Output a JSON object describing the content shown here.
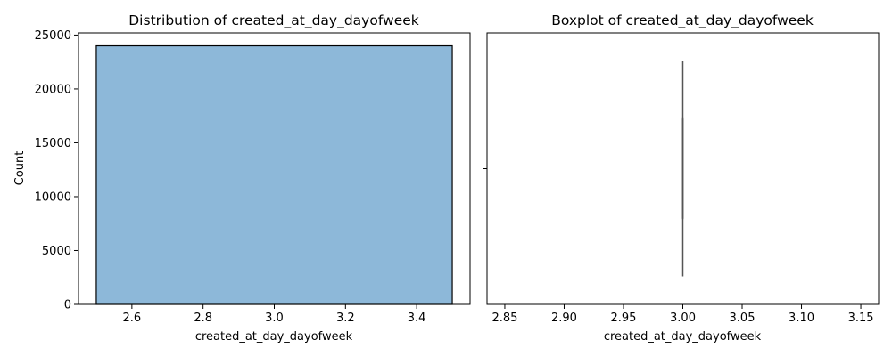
{
  "chart_data": [
    {
      "type": "bar",
      "title": "Distribution of created_at_day_dayofweek",
      "xlabel": "created_at_day_dayofweek",
      "ylabel": "Count",
      "bins": [
        {
          "x0": 2.5,
          "x1": 3.5,
          "count": 24000
        }
      ],
      "xlim": [
        2.45,
        3.55
      ],
      "ylim": [
        0,
        25200
      ],
      "xticks": [
        2.6,
        2.8,
        3.0,
        3.2,
        3.4
      ],
      "xtick_labels": [
        "2.6",
        "2.8",
        "3.0",
        "3.2",
        "3.4"
      ],
      "yticks": [
        0,
        5000,
        10000,
        15000,
        20000,
        25000
      ],
      "ytick_labels": [
        "0",
        "5000",
        "10000",
        "15000",
        "20000",
        "25000"
      ],
      "bar_color": "#8db8d9",
      "grid": false
    },
    {
      "type": "boxplot",
      "title": "Boxplot of created_at_day_dayofweek",
      "xlabel": "created_at_day_dayofweek",
      "ylabel": "",
      "box": {
        "min": 3.0,
        "q1": 3.0,
        "median": 3.0,
        "q3": 3.0,
        "max": 3.0
      },
      "xlim": [
        2.835,
        3.165
      ],
      "xticks": [
        2.85,
        2.9,
        2.95,
        3.0,
        3.05,
        3.1,
        3.15
      ],
      "xtick_labels": [
        "2.85",
        "2.90",
        "2.95",
        "3.00",
        "3.05",
        "3.10",
        "3.15"
      ],
      "box_color": "#555555",
      "grid": false
    }
  ]
}
